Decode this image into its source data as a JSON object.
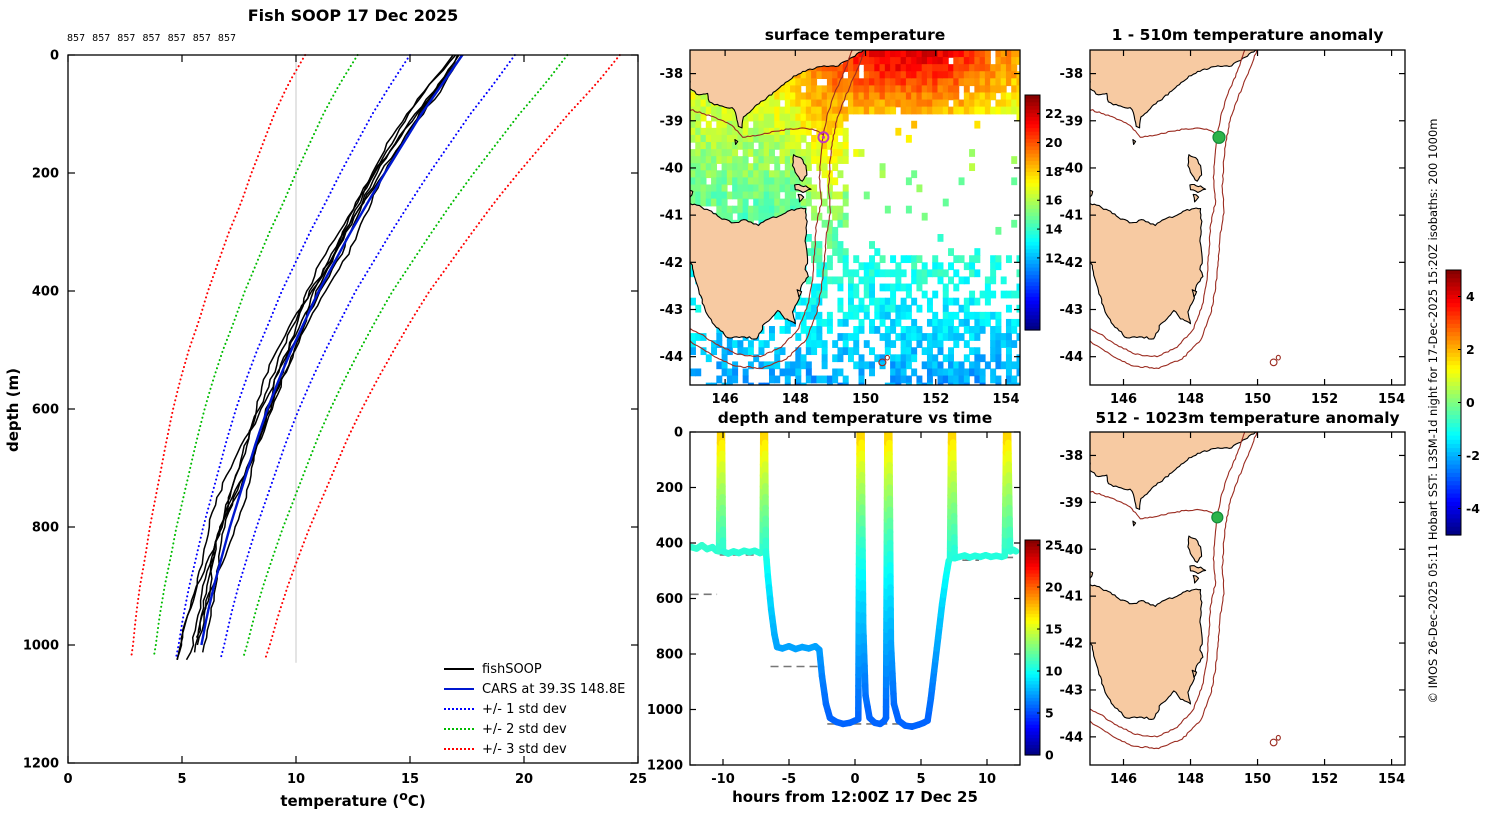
{
  "left_panel": {
    "title": "Fish SOOP 17 Dec 2025",
    "profile_ids": "857 857 857 857 857 857 857",
    "ylabel": "depth (m)",
    "xlabel_pre": "temperature (",
    "xlabel_sup": "o",
    "xlabel_post": "C)",
    "xticks": [
      0,
      5,
      10,
      15,
      20,
      25
    ],
    "yticks": [
      0,
      200,
      400,
      600,
      800,
      1000,
      1200
    ],
    "legend": [
      "fishSOOP",
      "CARS at 39.3S 148.8E",
      "+/- 1 std dev",
      "+/- 2 std dev",
      "+/- 3 std dev"
    ]
  },
  "sst_panel": {
    "title": "surface temperature",
    "lon_ticks": [
      146,
      148,
      150,
      152,
      154
    ],
    "lat_ticks": [
      -38,
      -39,
      -40,
      -41,
      -42,
      -43,
      -44
    ],
    "colorbar_ticks": [
      22,
      20,
      18,
      16,
      14,
      12
    ]
  },
  "depth_time_panel": {
    "title": "depth and temperature vs time",
    "xlabel": "hours from 12:00Z 17 Dec 25",
    "xticks": [
      -10,
      -5,
      0,
      5,
      10
    ],
    "yticks": [
      0,
      200,
      400,
      600,
      800,
      1000,
      1200
    ],
    "colorbar_ticks": [
      25,
      20,
      15,
      10,
      5,
      0
    ]
  },
  "anomaly_upper": {
    "title": "1 - 510m temperature anomaly"
  },
  "anomaly_lower": {
    "title": "512 - 1023m temperature anomaly"
  },
  "anomaly_colorbar_ticks": [
    4,
    2,
    0,
    -2,
    -4
  ],
  "footer": {
    "copyright": "© IMOS 26-Dec-2025 05:11 Hobart SST: L3SM-1d night for 17-Dec-2025 15:20Z isobaths: 200  1000m"
  },
  "colors": {
    "land": "#f7caa2",
    "coast": "#000000",
    "contour": "#9b2c21",
    "marker_green": "#2db34a",
    "marker_green_edge": "#128a3a",
    "marker_magenta": "#c03ac0",
    "cars_blue": "#0018cf",
    "std1": "#0000ff",
    "std2": "#00bb00",
    "std3": "#ff0000",
    "fishsoop": "#000000",
    "seabed_dash": "#777777",
    "gridline": "#c8c8c8"
  },
  "chart_data": [
    {
      "type": "line",
      "title": "Fish SOOP 17 Dec 2025",
      "xlabel": "temperature (oC)",
      "ylabel": "depth (m)",
      "xlim": [
        0,
        25
      ],
      "depth_lim": [
        0,
        1200
      ],
      "gridline_temp": 10,
      "depths": [
        0,
        50,
        100,
        150,
        200,
        250,
        300,
        350,
        400,
        450,
        500,
        550,
        600,
        650,
        700,
        750,
        800,
        850,
        900,
        950,
        1000,
        1025
      ],
      "cars_mean": [
        17.3,
        16.4,
        15.5,
        14.7,
        13.9,
        13.15,
        12.4,
        11.7,
        11.0,
        10.4,
        9.8,
        9.25,
        8.75,
        8.3,
        7.9,
        7.5,
        7.1,
        6.75,
        6.4,
        6.1,
        5.85,
        5.7
      ],
      "std_dev": [
        2.3,
        2.25,
        2.15,
        2.05,
        1.95,
        1.85,
        1.78,
        1.7,
        1.62,
        1.55,
        1.5,
        1.44,
        1.38,
        1.32,
        1.27,
        1.22,
        1.17,
        1.12,
        1.08,
        1.04,
        1.0,
        0.98
      ],
      "cars_location": "39.3S 148.8E",
      "profile_ids": [
        857,
        857,
        857,
        857,
        857,
        857,
        857
      ],
      "profile_offsets": [
        -0.6,
        -0.45,
        -0.3,
        -0.15,
        0.0,
        0.12,
        -0.75
      ],
      "profile_max_depths": [
        1025,
        1008,
        1032,
        998,
        1018,
        1022,
        1035
      ],
      "profile_seeds": [
        11,
        23,
        37,
        47,
        59,
        71,
        83
      ]
    },
    {
      "type": "heatmap",
      "title": "surface temperature",
      "lon_range": [
        145,
        154.4
      ],
      "lat_range": [
        -44.6,
        -37.5
      ],
      "lon_ticks": [
        146,
        148,
        150,
        152,
        154
      ],
      "lat_ticks": [
        -38,
        -39,
        -40,
        -41,
        -42,
        -43,
        -44
      ],
      "colorbar": {
        "range": [
          7,
          23.3
        ],
        "ticks": [
          12,
          14,
          16,
          18,
          20,
          22
        ]
      },
      "marker": {
        "lon": 148.8,
        "lat": -39.35,
        "style": "magenta-circle"
      }
    },
    {
      "type": "line",
      "title": "depth and temperature vs time",
      "xlabel": "hours from 12:00Z 17 Dec 25",
      "xlim": [
        -12.5,
        12.5
      ],
      "depth_lim": [
        0,
        1200
      ],
      "colorbar": {
        "range": [
          0,
          25.6
        ],
        "ticks": [
          0,
          5,
          10,
          15,
          20,
          25
        ]
      },
      "track": [
        [
          -12.4,
          415
        ],
        [
          -12.0,
          420
        ],
        [
          -11.6,
          408
        ],
        [
          -11.2,
          422
        ],
        [
          -10.8,
          415
        ],
        [
          -10.5,
          428
        ],
        [
          -10.3,
          430
        ],
        [
          -10.22,
          0
        ],
        [
          -10.08,
          0
        ],
        [
          -10.0,
          430
        ],
        [
          -9.6,
          438
        ],
        [
          -9.2,
          430
        ],
        [
          -8.8,
          436
        ],
        [
          -8.4,
          428
        ],
        [
          -8.0,
          433
        ],
        [
          -7.6,
          428
        ],
        [
          -7.2,
          436
        ],
        [
          -7.0,
          432
        ],
        [
          -6.95,
          0
        ],
        [
          -6.82,
          0
        ],
        [
          -6.75,
          430
        ],
        [
          -6.6,
          520
        ],
        [
          -6.35,
          640
        ],
        [
          -6.1,
          730
        ],
        [
          -5.9,
          775
        ],
        [
          -5.5,
          780
        ],
        [
          -5.0,
          772
        ],
        [
          -4.5,
          782
        ],
        [
          -4.0,
          775
        ],
        [
          -3.5,
          780
        ],
        [
          -3.0,
          772
        ],
        [
          -2.7,
          785
        ],
        [
          -2.5,
          880
        ],
        [
          -2.2,
          980
        ],
        [
          -1.9,
          1030
        ],
        [
          -1.4,
          1045
        ],
        [
          -0.9,
          1052
        ],
        [
          -0.4,
          1048
        ],
        [
          0.0,
          1040
        ],
        [
          0.25,
          1035
        ],
        [
          0.35,
          0
        ],
        [
          0.5,
          0
        ],
        [
          0.62,
          700
        ],
        [
          0.8,
          950
        ],
        [
          1.1,
          1030
        ],
        [
          1.5,
          1048
        ],
        [
          1.9,
          1052
        ],
        [
          2.2,
          1042
        ],
        [
          2.35,
          1030
        ],
        [
          2.45,
          0
        ],
        [
          2.6,
          0
        ],
        [
          2.72,
          760
        ],
        [
          2.95,
          980
        ],
        [
          3.3,
          1040
        ],
        [
          3.8,
          1058
        ],
        [
          4.3,
          1062
        ],
        [
          4.8,
          1055
        ],
        [
          5.2,
          1048
        ],
        [
          5.5,
          1040
        ],
        [
          5.75,
          960
        ],
        [
          6.0,
          860
        ],
        [
          6.3,
          740
        ],
        [
          6.6,
          620
        ],
        [
          6.9,
          520
        ],
        [
          7.1,
          465
        ],
        [
          7.2,
          458
        ],
        [
          7.28,
          0
        ],
        [
          7.42,
          0
        ],
        [
          7.55,
          455
        ],
        [
          7.9,
          450
        ],
        [
          8.3,
          445
        ],
        [
          8.7,
          452
        ],
        [
          9.1,
          446
        ],
        [
          9.5,
          450
        ],
        [
          9.9,
          444
        ],
        [
          10.3,
          450
        ],
        [
          10.7,
          446
        ],
        [
          11.1,
          450
        ],
        [
          11.35,
          446
        ],
        [
          11.45,
          0
        ],
        [
          11.6,
          0
        ],
        [
          11.75,
          430
        ],
        [
          12.0,
          425
        ],
        [
          12.2,
          430
        ]
      ],
      "bottom_depth_dashes": [
        [
          -12.45,
          585,
          -10.45
        ],
        [
          -10.25,
          443,
          -7.0
        ],
        [
          -6.4,
          845,
          -2.5
        ],
        [
          -2.1,
          1052,
          5.7
        ],
        [
          7.15,
          462,
          9.4
        ],
        [
          9.4,
          452,
          12.35
        ]
      ]
    },
    {
      "type": "map",
      "title": "1 - 510m temperature anomaly",
      "lon_range": [
        145,
        154.4
      ],
      "lat_range": [
        -44.6,
        -37.5
      ],
      "colorbar": {
        "range": [
          -5,
          5
        ],
        "ticks": [
          -4,
          -2,
          0,
          2,
          4
        ]
      },
      "marker": {
        "lon": 148.85,
        "lat": -39.35,
        "style": "green-dot",
        "radius": 6
      }
    },
    {
      "type": "map",
      "title": "512 - 1023m temperature anomaly",
      "lon_range": [
        145,
        154.4
      ],
      "lat_range": [
        -44.6,
        -37.5
      ],
      "colorbar": {
        "range": [
          -5,
          5
        ],
        "ticks": [
          -4,
          -2,
          0,
          2,
          4
        ]
      },
      "marker": {
        "lon": 148.8,
        "lat": -39.32,
        "style": "green-dot",
        "radius": 5.5
      }
    }
  ],
  "geo": {
    "mainland": [
      [
        145.0,
        -38.32
      ],
      [
        145.25,
        -38.45
      ],
      [
        145.5,
        -38.42
      ],
      [
        145.55,
        -38.6
      ],
      [
        145.85,
        -38.68
      ],
      [
        146.2,
        -38.72
      ],
      [
        146.32,
        -38.9
      ],
      [
        146.38,
        -39.12
      ],
      [
        146.48,
        -39.15
      ],
      [
        146.52,
        -38.92
      ],
      [
        146.75,
        -38.78
      ],
      [
        146.9,
        -38.66
      ],
      [
        147.2,
        -38.5
      ],
      [
        147.55,
        -38.3
      ],
      [
        147.95,
        -38.05
      ],
      [
        148.35,
        -37.92
      ],
      [
        148.75,
        -37.85
      ],
      [
        149.15,
        -37.85
      ],
      [
        149.5,
        -37.72
      ],
      [
        149.75,
        -37.58
      ],
      [
        149.95,
        -37.5
      ],
      [
        150.05,
        -37.1
      ],
      [
        144.9,
        -37.1
      ]
    ],
    "tasmania": [
      [
        144.6,
        -40.7
      ],
      [
        145.2,
        -40.79
      ],
      [
        145.55,
        -40.9
      ],
      [
        145.85,
        -41.05
      ],
      [
        146.25,
        -41.16
      ],
      [
        146.6,
        -41.1
      ],
      [
        146.95,
        -41.22
      ],
      [
        147.3,
        -41.06
      ],
      [
        147.6,
        -41.0
      ],
      [
        147.9,
        -40.88
      ],
      [
        148.3,
        -40.86
      ],
      [
        148.32,
        -41.2
      ],
      [
        148.28,
        -41.55
      ],
      [
        148.35,
        -41.95
      ],
      [
        148.28,
        -42.15
      ],
      [
        148.37,
        -42.3
      ],
      [
        148.15,
        -42.55
      ],
      [
        148.08,
        -42.82
      ],
      [
        147.92,
        -43.05
      ],
      [
        148.0,
        -43.3
      ],
      [
        147.7,
        -43.2
      ],
      [
        147.5,
        -43.02
      ],
      [
        147.35,
        -43.15
      ],
      [
        147.12,
        -43.3
      ],
      [
        146.9,
        -43.62
      ],
      [
        146.55,
        -43.58
      ],
      [
        146.1,
        -43.6
      ],
      [
        145.75,
        -43.38
      ],
      [
        145.45,
        -43.05
      ],
      [
        145.25,
        -42.6
      ],
      [
        145.1,
        -42.2
      ],
      [
        144.95,
        -41.8
      ],
      [
        144.72,
        -41.2
      ]
    ],
    "islands": [
      [
        [
          147.95,
          -39.72
        ],
        [
          148.15,
          -39.78
        ],
        [
          148.3,
          -39.95
        ],
        [
          148.33,
          -40.15
        ],
        [
          148.2,
          -40.28
        ],
        [
          148.05,
          -40.15
        ],
        [
          147.92,
          -39.95
        ]
      ],
      [
        [
          147.98,
          -40.36
        ],
        [
          148.3,
          -40.38
        ],
        [
          148.45,
          -40.45
        ],
        [
          148.22,
          -40.52
        ],
        [
          148.0,
          -40.46
        ]
      ],
      [
        [
          148.08,
          -40.56
        ],
        [
          148.24,
          -40.62
        ],
        [
          148.12,
          -40.72
        ]
      ],
      [
        [
          144.9,
          -40.45
        ],
        [
          145.08,
          -40.5
        ],
        [
          145.0,
          -40.62
        ],
        [
          144.85,
          -40.58
        ]
      ],
      [
        [
          146.28,
          -39.4
        ],
        [
          146.36,
          -39.44
        ],
        [
          146.3,
          -39.5
        ]
      ],
      [
        [
          148.05,
          -42.58
        ],
        [
          148.18,
          -42.62
        ],
        [
          148.1,
          -42.73
        ]
      ]
    ],
    "contour_200m": [
      [
        149.62,
        -37.5
      ],
      [
        149.4,
        -37.95
      ],
      [
        149.12,
        -38.42
      ],
      [
        148.9,
        -38.9
      ],
      [
        148.8,
        -39.3
      ],
      [
        148.73,
        -39.75
      ],
      [
        148.68,
        -40.2
      ],
      [
        148.75,
        -40.7
      ],
      [
        148.6,
        -41.2
      ],
      [
        148.55,
        -41.75
      ],
      [
        148.5,
        -42.3
      ],
      [
        148.38,
        -42.85
      ],
      [
        148.1,
        -43.4
      ],
      [
        147.6,
        -43.8
      ],
      [
        147.0,
        -44.0
      ],
      [
        146.35,
        -43.95
      ],
      [
        145.8,
        -43.75
      ],
      [
        145.3,
        -43.52
      ],
      [
        144.95,
        -43.4
      ]
    ],
    "contour_1000m": [
      [
        149.98,
        -37.5
      ],
      [
        149.72,
        -38.0
      ],
      [
        149.42,
        -38.5
      ],
      [
        149.18,
        -39.0
      ],
      [
        149.05,
        -39.45
      ],
      [
        148.98,
        -39.95
      ],
      [
        148.95,
        -40.45
      ],
      [
        149.0,
        -40.95
      ],
      [
        148.88,
        -41.45
      ],
      [
        148.82,
        -42.0
      ],
      [
        148.75,
        -42.55
      ],
      [
        148.6,
        -43.1
      ],
      [
        148.3,
        -43.65
      ],
      [
        147.75,
        -44.05
      ],
      [
        147.05,
        -44.25
      ],
      [
        146.3,
        -44.2
      ],
      [
        145.7,
        -44.0
      ],
      [
        145.15,
        -43.75
      ],
      [
        144.9,
        -43.6
      ]
    ],
    "contour_vic_shelf": [
      [
        144.95,
        -38.75
      ],
      [
        145.6,
        -38.9
      ],
      [
        146.2,
        -39.1
      ],
      [
        146.5,
        -39.35
      ],
      [
        147.0,
        -39.3
      ],
      [
        147.6,
        -39.2
      ],
      [
        148.2,
        -39.15
      ],
      [
        148.55,
        -39.2
      ],
      [
        148.8,
        -39.3
      ]
    ],
    "seamount_contours": [
      [
        150.48,
        -44.12,
        0.1,
        0.07
      ],
      [
        150.62,
        -44.02,
        0.06,
        0.05
      ]
    ]
  }
}
